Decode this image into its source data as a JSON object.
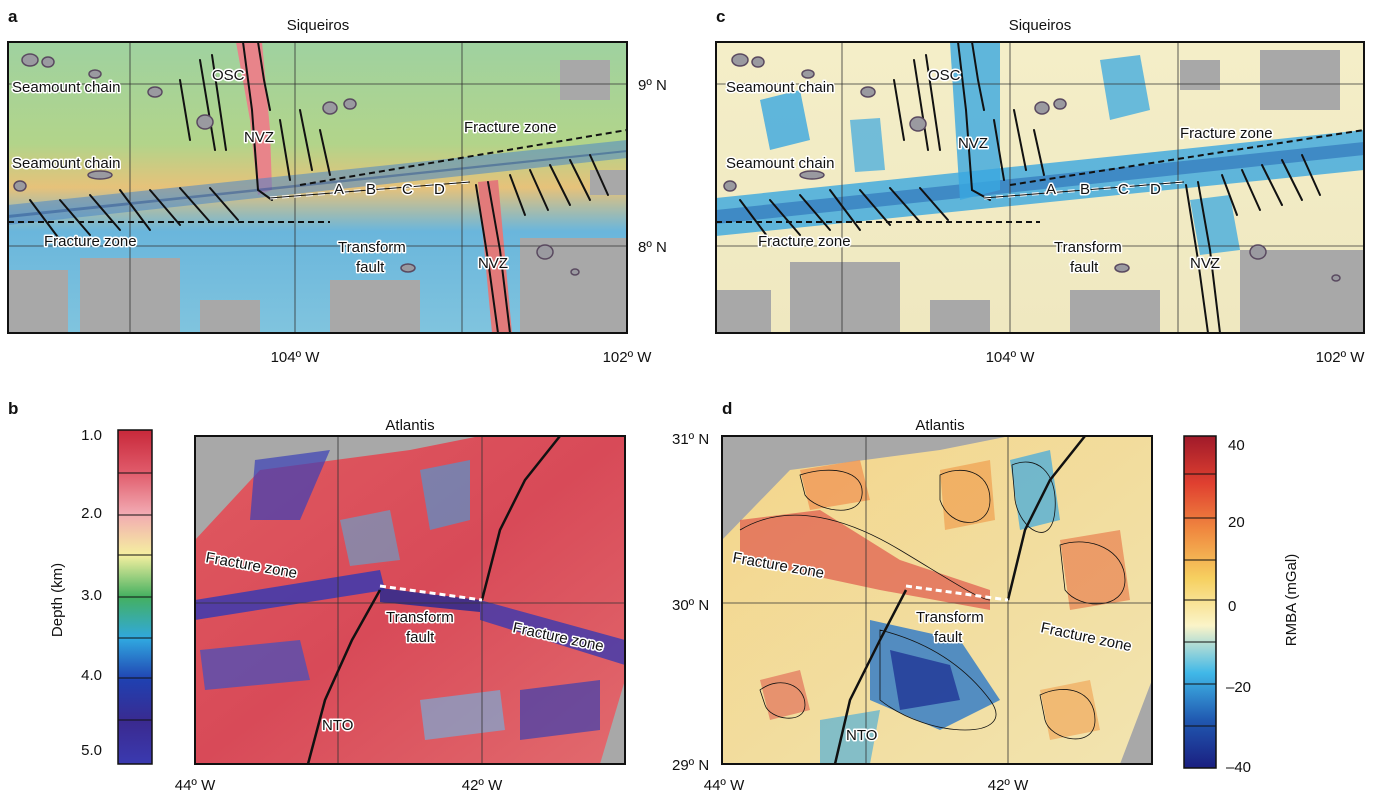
{
  "panels": {
    "a": {
      "letter": "a",
      "title": "Siqueiros",
      "lat_labels": [
        "9º N",
        "8º N"
      ],
      "lon_labels": [
        "104º W",
        "102º W"
      ],
      "labels": {
        "osc": "OSC",
        "seamount1": "Seamount chain",
        "seamount2": "Seamount chain",
        "nvz1": "NVZ",
        "nvz2": "NVZ",
        "fz1": "Fracture zone",
        "fz2": "Fracture zone",
        "tf1": "Transform",
        "tf2": "fault",
        "A": "A",
        "B": "B",
        "C": "C",
        "D": "D"
      }
    },
    "c": {
      "letter": "c",
      "title": "Siqueiros",
      "lon_labels": [
        "104º W",
        "102º W"
      ],
      "labels": {
        "osc": "OSC",
        "seamount1": "Seamount chain",
        "seamount2": "Seamount chain",
        "nvz1": "NVZ",
        "nvz2": "NVZ",
        "fz1": "Fracture zone",
        "fz2": "Fracture zone",
        "tf1": "Transform",
        "tf2": "fault",
        "A": "A",
        "B": "B",
        "C": "C",
        "D": "D"
      }
    },
    "b": {
      "letter": "b",
      "title": "Atlantis",
      "lon_labels": [
        "44º W",
        "42º W"
      ],
      "labels": {
        "fz1": "Fracture zone",
        "fz2": "Fracture zone",
        "tf1": "Transform",
        "tf2": "fault",
        "nto": "NTO"
      }
    },
    "d": {
      "letter": "d",
      "title": "Atlantis",
      "lon_labels": [
        "44º W",
        "42º W"
      ],
      "lat_labels": [
        "31º N",
        "30º N",
        "29º N"
      ],
      "labels": {
        "fz1": "Fracture zone",
        "fz2": "Fracture zone",
        "tf1": "Transform",
        "tf2": "fault",
        "nto": "NTO"
      }
    }
  },
  "depth_bar": {
    "label": "Depth (km)",
    "ticks": [
      "1.0",
      "2.0",
      "3.0",
      "4.0",
      "5.0"
    ],
    "colors": [
      "#c8283a",
      "#e05a6a",
      "#f2aab2",
      "#f5f0a0",
      "#44b060",
      "#30a8e0",
      "#2040b0",
      "#3a2a90",
      "#3a3ab0"
    ]
  },
  "rmba_bar": {
    "label": "RMBA (mGal)",
    "ticks": [
      "40",
      "20",
      "0",
      "–20",
      "–40"
    ],
    "colors": [
      "#a01a2a",
      "#e04030",
      "#f08a40",
      "#f6d060",
      "#fbf4c8",
      "#40b8e8",
      "#2058b0",
      "#1a1e80"
    ]
  }
}
